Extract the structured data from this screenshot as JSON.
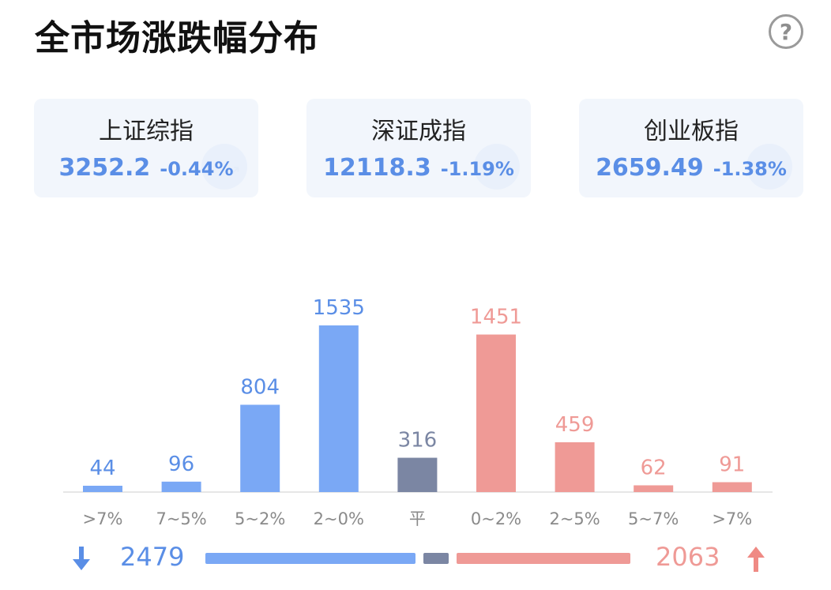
{
  "title": "全市场涨跌幅分布",
  "help_icon": "?",
  "indices": [
    {
      "name": "上证综指",
      "price": "3252.2",
      "change": "-0.44%"
    },
    {
      "name": "深证成指",
      "price": "12118.3",
      "change": "-1.19%"
    },
    {
      "name": "创业板指",
      "price": "2659.49",
      "change": "-1.38%"
    }
  ],
  "colors": {
    "down": "#7aa8f5",
    "flat": "#7b86a3",
    "up": "#ef9a96",
    "down_text": "#5a8ee6"
  },
  "chart_data": {
    "type": "bar",
    "categories": [
      ">7%",
      "7~5%",
      "5~2%",
      "2~0%",
      "平",
      "0~2%",
      "2~5%",
      "5~7%",
      ">7%"
    ],
    "values": [
      44,
      96,
      804,
      1535,
      316,
      1451,
      459,
      62,
      91
    ],
    "groups": [
      "down",
      "down",
      "down",
      "down",
      "flat",
      "up",
      "up",
      "up",
      "up"
    ],
    "ylim": [
      0,
      1535
    ]
  },
  "summary": {
    "down_total": "2479",
    "up_total": "2063",
    "down_icon": "arrow-down-icon",
    "up_icon": "arrow-up-icon"
  }
}
